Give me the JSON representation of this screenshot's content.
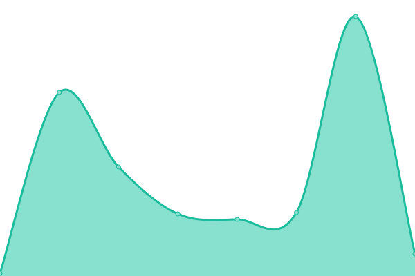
{
  "chart_data": {
    "type": "area",
    "x": [
      0,
      1,
      2,
      3,
      4,
      5,
      6,
      7
    ],
    "values": [
      1,
      66.5,
      39.5,
      22.5,
      20.5,
      23,
      94,
      8
    ],
    "ylim": [
      0,
      100
    ],
    "grid": false,
    "smooth": true,
    "colors": {
      "line": "#1abc9c",
      "fill": "#88e0cf",
      "marker": "#88e0cf"
    }
  }
}
